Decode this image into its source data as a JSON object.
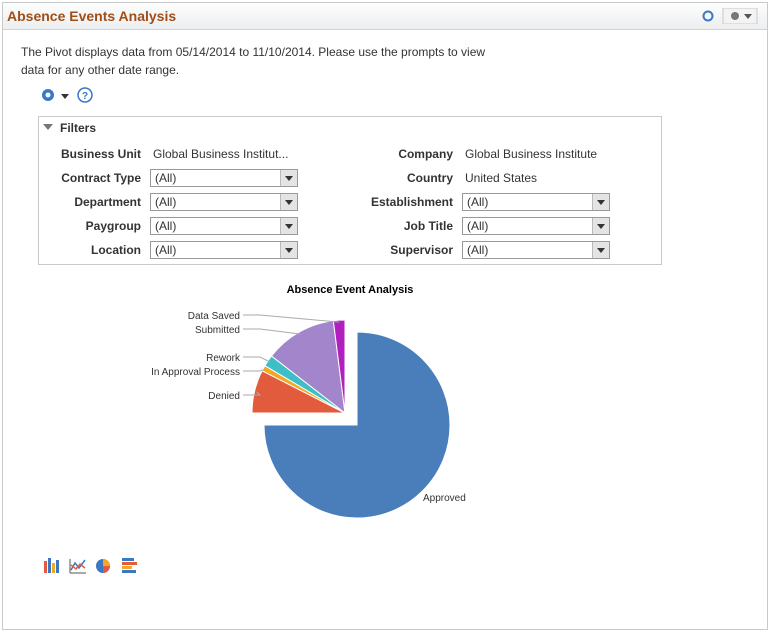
{
  "header": {
    "title": "Absence Events Analysis"
  },
  "description": "The Pivot displays data from 05/14/2014 to 11/10/2014. Please use the prompts to view data for any other date range.",
  "filters": {
    "title": "Filters",
    "fields": [
      {
        "label": "Business Unit",
        "value": "Global Business Institut..."
      },
      {
        "label": "Company",
        "value": "Global Business Institute"
      },
      {
        "label": "Contract Type",
        "value": "(All)"
      },
      {
        "label": "Country",
        "value": "United States"
      },
      {
        "label": "Department",
        "value": "(All)"
      },
      {
        "label": "Establishment",
        "value": "(All)"
      },
      {
        "label": "Paygroup",
        "value": "(All)"
      },
      {
        "label": "Job Title",
        "value": "(All)"
      },
      {
        "label": "Location",
        "value": "(All)"
      },
      {
        "label": "Supervisor",
        "value": "(All)"
      }
    ]
  },
  "chart_data": {
    "type": "pie",
    "title": "Absence Event Analysis",
    "categories": [
      "Approved",
      "Denied",
      "In Approval Process",
      "Rework",
      "Submitted",
      "Data Saved"
    ],
    "values": [
      75,
      7.5,
      1,
      2,
      12.5,
      2
    ],
    "colors": [
      "#4a7ebb",
      "#e15b3c",
      "#f5a623",
      "#3dbfc5",
      "#a385cc",
      "#b11fbf"
    ]
  }
}
